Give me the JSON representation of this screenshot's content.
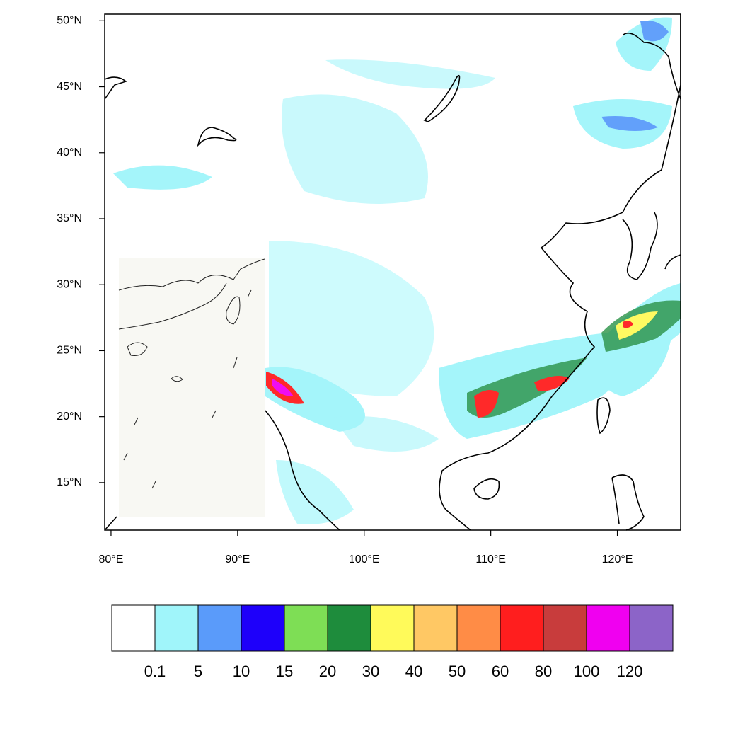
{
  "map": {
    "xlim": [
      79.5,
      125
    ],
    "ylim": [
      11.4,
      50.5
    ],
    "xticks": [
      {
        "value": 80,
        "label": "80°E"
      },
      {
        "value": 90,
        "label": "90°E"
      },
      {
        "value": 100,
        "label": "100°E"
      },
      {
        "value": 110,
        "label": "110°E"
      },
      {
        "value": 120,
        "label": "120°E"
      }
    ],
    "yticks": [
      {
        "value": 15,
        "label": "15°N"
      },
      {
        "value": 20,
        "label": "20°N"
      },
      {
        "value": 25,
        "label": "25°N"
      },
      {
        "value": 30,
        "label": "30°N"
      },
      {
        "value": 35,
        "label": "35°N"
      },
      {
        "value": 40,
        "label": "40°N"
      },
      {
        "value": 45,
        "label": "45°N"
      },
      {
        "value": 50,
        "label": "50°N"
      }
    ],
    "colorbar": {
      "colors": [
        "#ffffff",
        "#a0f5fa",
        "#5a9bfa",
        "#1e00fa",
        "#7ede55",
        "#1e8c3c",
        "#fffa5a",
        "#ffc864",
        "#ff8c46",
        "#ff1e1e",
        "#c83c3c",
        "#f000f0",
        "#8c64c8"
      ],
      "levels": [
        0.1,
        5,
        10,
        15,
        20,
        30,
        40,
        50,
        60,
        80,
        100,
        120
      ]
    }
  }
}
